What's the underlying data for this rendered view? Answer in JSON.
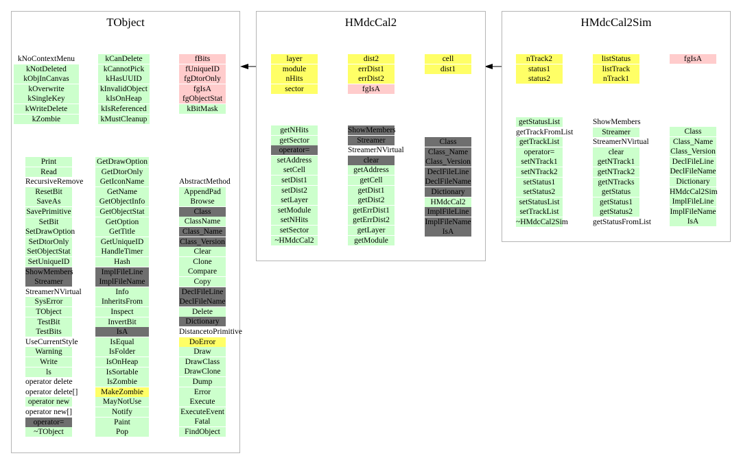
{
  "colors": {
    "green": "#ccffcc",
    "gray": "#6f6f6f",
    "yellow": "#ffff66",
    "pink": "#ffcccc",
    "none": "transparent",
    "border": "#b4b4b4"
  },
  "boxes": [
    {
      "id": "tobject",
      "title": "TObject",
      "columns": [
        {
          "id": "tobject-col1",
          "items": [
            {
              "text": "kNoContextMenu",
              "style": "none"
            },
            {
              "text": "kNotDeleted",
              "style": "green"
            },
            {
              "text": "kObjInCanvas",
              "style": "green"
            },
            {
              "text": "kOverwrite",
              "style": "green"
            },
            {
              "text": "kSingleKey",
              "style": "green"
            },
            {
              "text": "kWriteDelete",
              "style": "green"
            },
            {
              "text": "kZombie",
              "style": "green"
            }
          ]
        },
        {
          "id": "tobject-col2",
          "items": [
            {
              "text": "kCanDelete",
              "style": "green"
            },
            {
              "text": "kCannotPick",
              "style": "green"
            },
            {
              "text": "kHasUUID",
              "style": "green"
            },
            {
              "text": "kInvalidObject",
              "style": "green"
            },
            {
              "text": "kIsOnHeap",
              "style": "green"
            },
            {
              "text": "kIsReferenced",
              "style": "green"
            },
            {
              "text": "kMustCleanup",
              "style": "green"
            }
          ]
        },
        {
          "id": "tobject-col3",
          "items": [
            {
              "text": "fBits",
              "style": "pink"
            },
            {
              "text": "fUniqueID",
              "style": "pink"
            },
            {
              "text": "fgDtorOnly",
              "style": "pink"
            },
            {
              "text": "fgIsA",
              "style": "pink"
            },
            {
              "text": "fgObjectStat",
              "style": "pink"
            },
            {
              "text": "kBitMask",
              "style": "green"
            }
          ]
        },
        {
          "id": "tobject-col4",
          "items": [
            {
              "text": "Print",
              "style": "green"
            },
            {
              "text": "Read",
              "style": "green"
            },
            {
              "text": "RecursiveRemove",
              "style": "none"
            },
            {
              "text": "ResetBit",
              "style": "green"
            },
            {
              "text": "SaveAs",
              "style": "green"
            },
            {
              "text": "SavePrimitive",
              "style": "green"
            },
            {
              "text": "SetBit",
              "style": "green"
            },
            {
              "text": "SetDrawOption",
              "style": "green"
            },
            {
              "text": "SetDtorOnly",
              "style": "green"
            },
            {
              "text": "SetObjectStat",
              "style": "green"
            },
            {
              "text": "SetUniqueID",
              "style": "green"
            },
            {
              "text": "ShowMembers",
              "style": "gray"
            },
            {
              "text": "Streamer",
              "style": "gray"
            },
            {
              "text": "StreamerNVirtual",
              "style": "none"
            },
            {
              "text": "SysError",
              "style": "green"
            },
            {
              "text": "TObject",
              "style": "green"
            },
            {
              "text": "TestBit",
              "style": "green"
            },
            {
              "text": "TestBits",
              "style": "green"
            },
            {
              "text": "UseCurrentStyle",
              "style": "none"
            },
            {
              "text": "Warning",
              "style": "green"
            },
            {
              "text": "Write",
              "style": "green"
            },
            {
              "text": "ls",
              "style": "green"
            },
            {
              "text": "operator delete",
              "style": "none"
            },
            {
              "text": "operator delete[]",
              "style": "none"
            },
            {
              "text": "operator new",
              "style": "green"
            },
            {
              "text": "operator new[]",
              "style": "none"
            },
            {
              "text": "operator=",
              "style": "gray"
            },
            {
              "text": "~TObject",
              "style": "green"
            }
          ]
        },
        {
          "id": "tobject-col5",
          "items": [
            {
              "text": "GetDrawOption",
              "style": "green"
            },
            {
              "text": "GetDtorOnly",
              "style": "green"
            },
            {
              "text": "GetIconName",
              "style": "green"
            },
            {
              "text": "GetName",
              "style": "green"
            },
            {
              "text": "GetObjectInfo",
              "style": "green"
            },
            {
              "text": "GetObjectStat",
              "style": "green"
            },
            {
              "text": "GetOption",
              "style": "green"
            },
            {
              "text": "GetTitle",
              "style": "green"
            },
            {
              "text": "GetUniqueID",
              "style": "green"
            },
            {
              "text": "HandleTimer",
              "style": "green"
            },
            {
              "text": "Hash",
              "style": "green"
            },
            {
              "text": "ImplFileLine",
              "style": "gray"
            },
            {
              "text": "ImplFileName",
              "style": "gray"
            },
            {
              "text": "Info",
              "style": "green"
            },
            {
              "text": "InheritsFrom",
              "style": "green"
            },
            {
              "text": "Inspect",
              "style": "green"
            },
            {
              "text": "InvertBit",
              "style": "green"
            },
            {
              "text": "IsA",
              "style": "gray"
            },
            {
              "text": "IsEqual",
              "style": "green"
            },
            {
              "text": "IsFolder",
              "style": "green"
            },
            {
              "text": "IsOnHeap",
              "style": "green"
            },
            {
              "text": "IsSortable",
              "style": "green"
            },
            {
              "text": "IsZombie",
              "style": "green"
            },
            {
              "text": "MakeZombie",
              "style": "yellow"
            },
            {
              "text": "MayNotUse",
              "style": "green"
            },
            {
              "text": "Notify",
              "style": "green"
            },
            {
              "text": "Paint",
              "style": "green"
            },
            {
              "text": "Pop",
              "style": "green"
            }
          ]
        },
        {
          "id": "tobject-col6",
          "items": [
            {
              "text": "AbstractMethod",
              "style": "none"
            },
            {
              "text": "AppendPad",
              "style": "green"
            },
            {
              "text": "Browse",
              "style": "green"
            },
            {
              "text": "Class",
              "style": "gray"
            },
            {
              "text": "ClassName",
              "style": "green"
            },
            {
              "text": "Class_Name",
              "style": "gray"
            },
            {
              "text": "Class_Version",
              "style": "gray"
            },
            {
              "text": "Clear",
              "style": "green"
            },
            {
              "text": "Clone",
              "style": "green"
            },
            {
              "text": "Compare",
              "style": "green"
            },
            {
              "text": "Copy",
              "style": "green"
            },
            {
              "text": "DeclFileLine",
              "style": "gray"
            },
            {
              "text": "DeclFileName",
              "style": "gray"
            },
            {
              "text": "Delete",
              "style": "green"
            },
            {
              "text": "Dictionary",
              "style": "gray"
            },
            {
              "text": "DistancetoPrimitive",
              "style": "none"
            },
            {
              "text": "DoError",
              "style": "yellow"
            },
            {
              "text": "Draw",
              "style": "green"
            },
            {
              "text": "DrawClass",
              "style": "green"
            },
            {
              "text": "DrawClone",
              "style": "green"
            },
            {
              "text": "Dump",
              "style": "green"
            },
            {
              "text": "Error",
              "style": "green"
            },
            {
              "text": "Execute",
              "style": "green"
            },
            {
              "text": "ExecuteEvent",
              "style": "green"
            },
            {
              "text": "Fatal",
              "style": "green"
            },
            {
              "text": "FindObject",
              "style": "green"
            }
          ]
        }
      ]
    },
    {
      "id": "hmdccal2",
      "title": "HMdcCal2",
      "columns": [
        {
          "id": "hmdccal2-col1",
          "items": [
            {
              "text": "layer",
              "style": "yellow"
            },
            {
              "text": "module",
              "style": "yellow"
            },
            {
              "text": "nHits",
              "style": "yellow"
            },
            {
              "text": "sector",
              "style": "yellow"
            }
          ]
        },
        {
          "id": "hmdccal2-col2",
          "items": [
            {
              "text": "dist2",
              "style": "yellow"
            },
            {
              "text": "errDist1",
              "style": "yellow"
            },
            {
              "text": "errDist2",
              "style": "yellow"
            },
            {
              "text": "fgIsA",
              "style": "pink"
            }
          ]
        },
        {
          "id": "hmdccal2-col3",
          "items": [
            {
              "text": "cell",
              "style": "yellow"
            },
            {
              "text": "dist1",
              "style": "yellow"
            }
          ]
        },
        {
          "id": "hmdccal2-col4",
          "items": [
            {
              "text": "getNHits",
              "style": "green"
            },
            {
              "text": "getSector",
              "style": "green"
            },
            {
              "text": "operator=",
              "style": "gray"
            },
            {
              "text": "setAddress",
              "style": "green"
            },
            {
              "text": "setCell",
              "style": "green"
            },
            {
              "text": "setDist1",
              "style": "green"
            },
            {
              "text": "setDist2",
              "style": "green"
            },
            {
              "text": "setLayer",
              "style": "green"
            },
            {
              "text": "setModule",
              "style": "green"
            },
            {
              "text": "setNHits",
              "style": "green"
            },
            {
              "text": "setSector",
              "style": "green"
            },
            {
              "text": "~HMdcCal2",
              "style": "green"
            }
          ]
        },
        {
          "id": "hmdccal2-col5",
          "items": [
            {
              "text": "ShowMembers",
              "style": "gray"
            },
            {
              "text": "Streamer",
              "style": "gray"
            },
            {
              "text": "StreamerNVirtual",
              "style": "none"
            },
            {
              "text": "clear",
              "style": "gray"
            },
            {
              "text": "getAddress",
              "style": "green"
            },
            {
              "text": "getCell",
              "style": "green"
            },
            {
              "text": "getDist1",
              "style": "green"
            },
            {
              "text": "getDist2",
              "style": "green"
            },
            {
              "text": "getErrDist1",
              "style": "green"
            },
            {
              "text": "getErrDist2",
              "style": "green"
            },
            {
              "text": "getLayer",
              "style": "green"
            },
            {
              "text": "getModule",
              "style": "green"
            }
          ]
        },
        {
          "id": "hmdccal2-col6",
          "items": [
            {
              "text": "Class",
              "style": "gray"
            },
            {
              "text": "Class_Name",
              "style": "gray"
            },
            {
              "text": "Class_Version",
              "style": "gray"
            },
            {
              "text": "DeclFileLine",
              "style": "gray"
            },
            {
              "text": "DeclFileName",
              "style": "gray"
            },
            {
              "text": "Dictionary",
              "style": "gray"
            },
            {
              "text": "HMdcCal2",
              "style": "green"
            },
            {
              "text": "ImplFileLine",
              "style": "gray"
            },
            {
              "text": "ImplFileName",
              "style": "gray"
            },
            {
              "text": "IsA",
              "style": "gray"
            }
          ]
        }
      ]
    },
    {
      "id": "hmdccal2sim",
      "title": "HMdcCal2Sim",
      "columns": [
        {
          "id": "hmdccal2sim-col1",
          "items": [
            {
              "text": "nTrack2",
              "style": "yellow"
            },
            {
              "text": "status1",
              "style": "yellow"
            },
            {
              "text": "status2",
              "style": "yellow"
            }
          ]
        },
        {
          "id": "hmdccal2sim-col2",
          "items": [
            {
              "text": "listStatus",
              "style": "yellow"
            },
            {
              "text": "listTrack",
              "style": "yellow"
            },
            {
              "text": "nTrack1",
              "style": "yellow"
            }
          ]
        },
        {
          "id": "hmdccal2sim-col3",
          "items": [
            {
              "text": "fgIsA",
              "style": "pink"
            }
          ]
        },
        {
          "id": "hmdccal2sim-col4",
          "items": [
            {
              "text": "getStatusList",
              "style": "green"
            },
            {
              "text": "getTrackFromList",
              "style": "none"
            },
            {
              "text": "getTrackList",
              "style": "green"
            },
            {
              "text": "operator=",
              "style": "green"
            },
            {
              "text": "setNTrack1",
              "style": "green"
            },
            {
              "text": "setNTrack2",
              "style": "green"
            },
            {
              "text": "setStatus1",
              "style": "green"
            },
            {
              "text": "setStatus2",
              "style": "green"
            },
            {
              "text": "setStatusList",
              "style": "green"
            },
            {
              "text": "setTrackList",
              "style": "green"
            },
            {
              "text": "~HMdcCal2Sim",
              "style": "green"
            }
          ]
        },
        {
          "id": "hmdccal2sim-col5",
          "items": [
            {
              "text": "ShowMembers",
              "style": "none"
            },
            {
              "text": "Streamer",
              "style": "green"
            },
            {
              "text": "StreamerNVirtual",
              "style": "none"
            },
            {
              "text": "clear",
              "style": "green"
            },
            {
              "text": "getNTrack1",
              "style": "green"
            },
            {
              "text": "getNTrack2",
              "style": "green"
            },
            {
              "text": "getNTracks",
              "style": "green"
            },
            {
              "text": "getStatus",
              "style": "green"
            },
            {
              "text": "getStatus1",
              "style": "green"
            },
            {
              "text": "getStatus2",
              "style": "green"
            },
            {
              "text": "getStatusFromList",
              "style": "none"
            }
          ]
        },
        {
          "id": "hmdccal2sim-col6",
          "items": [
            {
              "text": "Class",
              "style": "green"
            },
            {
              "text": "Class_Name",
              "style": "green"
            },
            {
              "text": "Class_Version",
              "style": "green"
            },
            {
              "text": "DeclFileLine",
              "style": "green"
            },
            {
              "text": "DeclFileName",
              "style": "green"
            },
            {
              "text": "Dictionary",
              "style": "green"
            },
            {
              "text": "HMdcCal2Sim",
              "style": "green"
            },
            {
              "text": "ImplFileLine",
              "style": "green"
            },
            {
              "text": "ImplFileName",
              "style": "green"
            },
            {
              "text": "IsA",
              "style": "green"
            }
          ]
        }
      ]
    }
  ],
  "inheritance": [
    {
      "from": "hmdccal2sim",
      "to": "hmdccal2"
    },
    {
      "from": "hmdccal2",
      "to": "tobject"
    }
  ]
}
